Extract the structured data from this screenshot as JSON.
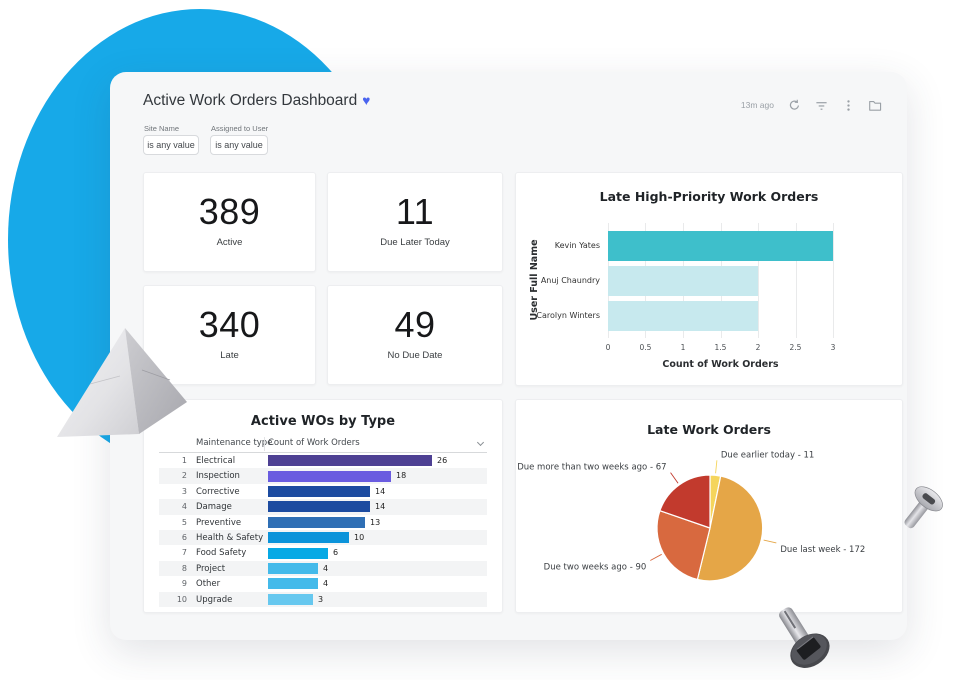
{
  "header": {
    "title": "Active Work Orders Dashboard",
    "heart": "♥",
    "updated": "13m ago"
  },
  "filters": [
    {
      "label": "Site Name",
      "value": "is any value"
    },
    {
      "label": "Assigned to User",
      "value": "is any value"
    }
  ],
  "kpis": [
    {
      "value": "389",
      "label": "Active"
    },
    {
      "value": "11",
      "label": "Due Later Today"
    },
    {
      "value": "340",
      "label": "Late"
    },
    {
      "value": "49",
      "label": "No Due Date"
    }
  ],
  "chart_data": [
    {
      "type": "bar",
      "orientation": "horizontal",
      "title": "Late High-Priority Work Orders",
      "ylabel": "User Full Name",
      "xlabel": "Count of Work Orders",
      "categories": [
        "Kevin Yates",
        "Anuj Chaundry",
        "Carolyn Winters"
      ],
      "values": [
        3,
        2,
        2
      ],
      "bar_colors": [
        "#3EBFCB",
        "#C7E9EE",
        "#C7E9EE"
      ],
      "xlim": [
        0,
        3
      ],
      "xticks": [
        "0",
        "0.5",
        "1",
        "1.5",
        "2",
        "2.5",
        "3"
      ],
      "grid": true,
      "legend": "none"
    },
    {
      "type": "table",
      "title": "Active WOs by Type",
      "columns": [
        "Maintenance type",
        "Count of Work Orders"
      ],
      "max_count": 26,
      "rows": [
        {
          "rank": "1",
          "type": "Electrical",
          "count": 26,
          "color": "#4E4093"
        },
        {
          "rank": "2",
          "type": "Inspection",
          "count": 18,
          "color": "#6A5CE0"
        },
        {
          "rank": "3",
          "type": "Corrective",
          "count": 14,
          "color": "#1C4BA0"
        },
        {
          "rank": "4",
          "type": "Damage",
          "count": 14,
          "color": "#1C4BA0"
        },
        {
          "rank": "5",
          "type": "Preventive",
          "count": 13,
          "color": "#2F6FB5"
        },
        {
          "rank": "6",
          "type": "Health & Safety",
          "count": 10,
          "color": "#0B93DA"
        },
        {
          "rank": "7",
          "type": "Food Safety",
          "count": 6,
          "color": "#06A9E5"
        },
        {
          "rank": "8",
          "type": "Project",
          "count": 4,
          "color": "#44BAEA"
        },
        {
          "rank": "9",
          "type": "Other",
          "count": 4,
          "color": "#44BAEA"
        },
        {
          "rank": "10",
          "type": "Upgrade",
          "count": 3,
          "color": "#67C8EF"
        }
      ]
    },
    {
      "type": "pie",
      "title": "Late Work Orders",
      "label_format": "{label} - {value}",
      "slices": [
        {
          "label": "Due earlier today",
          "value": 11,
          "color": "#F5D55C"
        },
        {
          "label": "Due last week",
          "value": 172,
          "color": "#E5A647"
        },
        {
          "label": "Due two weeks ago",
          "value": 90,
          "color": "#D8693F"
        },
        {
          "label": "Due more than two weeks ago",
          "value": 67,
          "color": "#C23A2D"
        }
      ]
    }
  ],
  "colors": {
    "blob": "#17A9E8",
    "heart": "#4A64EF",
    "card_bg": "#F6F7F8"
  }
}
